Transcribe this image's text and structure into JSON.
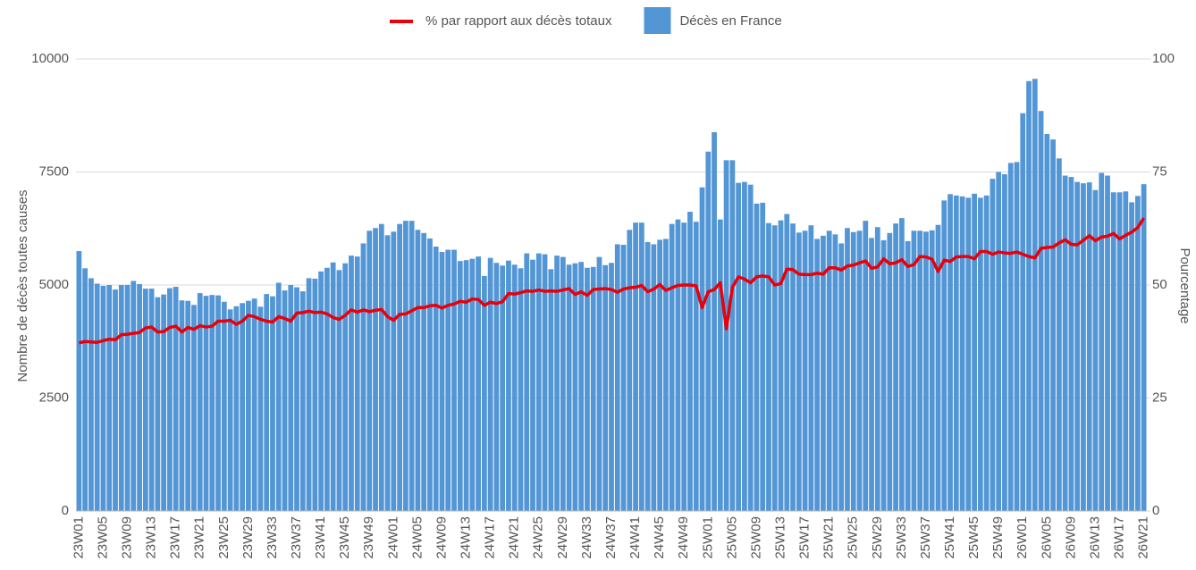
{
  "chart_data": {
    "type": "bar",
    "y_label": "Nombre de décès toutes causes",
    "y2_label": "Pourcentage",
    "ylim": [
      0,
      10000
    ],
    "yticks": [
      0,
      2500,
      5000,
      7500,
      10000
    ],
    "y2lim": [
      0,
      100
    ],
    "y2ticks": [
      0,
      25,
      50,
      75,
      100
    ],
    "grid": true,
    "legend": "top",
    "categories": [
      "23W01",
      null,
      null,
      null,
      "23W05",
      null,
      null,
      null,
      "23W09",
      null,
      null,
      null,
      "23W13",
      null,
      null,
      null,
      "23W17",
      null,
      null,
      null,
      "23W21",
      null,
      null,
      null,
      "23W25",
      null,
      null,
      null,
      "23W29",
      null,
      null,
      null,
      "23W33",
      null,
      null,
      null,
      "23W37",
      null,
      null,
      null,
      "23W41",
      null,
      null,
      null,
      "23W45",
      null,
      null,
      null,
      "23W49",
      null,
      null,
      null,
      "24W01",
      null,
      null,
      null,
      "24W05",
      null,
      null,
      null,
      "24W09",
      null,
      null,
      null,
      "24W13",
      null,
      null,
      null,
      "24W17",
      null,
      null,
      null,
      "24W21",
      null,
      null,
      null,
      "24W25",
      null,
      null,
      null,
      "24W29",
      null,
      null,
      null,
      "24W33",
      null,
      null,
      null,
      "24W37",
      null,
      null,
      null,
      "24W41",
      null,
      null,
      null,
      "24W45",
      null,
      null,
      null,
      "24W49",
      null,
      null,
      null,
      "25W01",
      null,
      null,
      null,
      "25W05",
      null,
      null,
      null,
      "25W09",
      null,
      null,
      null,
      "25W13",
      null,
      null,
      null,
      "25W17",
      null,
      null,
      null,
      "25W21",
      null,
      null,
      null,
      "25W25",
      null,
      null,
      null,
      "25W29",
      null,
      null,
      null,
      "25W33",
      null,
      null,
      null,
      "25W37",
      null,
      null,
      null,
      "25W41",
      null,
      null,
      null,
      "25W45",
      null,
      null,
      null,
      "25W49",
      null,
      null,
      null,
      "26W01",
      null,
      null,
      null,
      "26W05",
      null,
      null,
      null,
      "26W09",
      null,
      null,
      null,
      "26W13",
      null,
      null,
      null,
      "26W17",
      null,
      null,
      null,
      "26W21"
    ],
    "series": [
      {
        "name": "% par rapport aux décès totaux",
        "type": "line",
        "axis": "y2",
        "color": "#e8000b",
        "values": [
          37.2,
          37.5,
          37.4,
          37.3,
          37.7,
          38.0,
          37.9,
          39.0,
          39.1,
          39.3,
          39.5,
          40.5,
          40.7,
          39.6,
          39.7,
          40.6,
          40.9,
          39.6,
          40.6,
          40.2,
          41.0,
          40.7,
          40.9,
          42.0,
          42.0,
          42.2,
          41.3,
          42.0,
          43.3,
          43.0,
          42.4,
          42.0,
          41.8,
          43.0,
          42.6,
          42.0,
          43.8,
          43.9,
          44.2,
          43.9,
          44.0,
          43.6,
          42.8,
          42.4,
          43.3,
          44.5,
          44.0,
          44.5,
          44.1,
          44.4,
          44.6,
          43.0,
          42.2,
          43.5,
          43.6,
          44.3,
          45.0,
          45.0,
          45.4,
          45.5,
          44.9,
          45.5,
          45.8,
          46.4,
          46.2,
          46.9,
          46.8,
          45.5,
          46.2,
          45.9,
          46.3,
          48.1,
          48.0,
          48.3,
          48.7,
          48.6,
          48.9,
          48.6,
          48.7,
          48.6,
          48.9,
          49.2,
          47.9,
          48.5,
          47.7,
          49.0,
          49.1,
          49.2,
          49.0,
          48.4,
          49.1,
          49.4,
          49.5,
          49.9,
          48.5,
          49.1,
          50.1,
          48.8,
          49.4,
          49.9,
          50.0,
          50.0,
          49.8,
          45.0,
          48.5,
          49.0,
          50.5,
          40.3,
          49.5,
          51.8,
          51.3,
          50.5,
          51.8,
          52.0,
          51.8,
          50.0,
          50.3,
          53.5,
          53.4,
          52.4,
          52.3,
          52.3,
          52.6,
          52.4,
          53.8,
          53.8,
          53.3,
          54.2,
          54.4,
          54.9,
          55.3,
          53.7,
          54.0,
          55.8,
          54.7,
          54.9,
          55.6,
          54.1,
          54.5,
          56.3,
          56.2,
          55.7,
          53.0,
          55.5,
          55.2,
          56.2,
          56.3,
          56.3,
          55.8,
          57.4,
          57.4,
          56.8,
          57.3,
          57.1,
          57.0,
          57.3,
          56.8,
          56.3,
          56.0,
          58.1,
          58.3,
          58.4,
          59.3,
          60.0,
          59.0,
          58.9,
          59.9,
          60.9,
          59.8,
          60.6,
          60.8,
          61.4,
          60.2,
          61.0,
          61.7,
          62.7,
          64.8
        ]
      },
      {
        "name": "Décès en France",
        "type": "bar",
        "color": "#5396d6",
        "values": [
          5750,
          5370,
          5150,
          5030,
          4980,
          5000,
          4900,
          5000,
          5000,
          5090,
          5020,
          4920,
          4920,
          4730,
          4790,
          4930,
          4960,
          4660,
          4650,
          4560,
          4820,
          4760,
          4780,
          4770,
          4630,
          4460,
          4530,
          4600,
          4650,
          4700,
          4520,
          4800,
          4750,
          5050,
          4880,
          5000,
          4950,
          4860,
          5150,
          5140,
          5300,
          5380,
          5500,
          5330,
          5480,
          5650,
          5630,
          5920,
          6200,
          6260,
          6350,
          6100,
          6180,
          6350,
          6420,
          6420,
          6220,
          6150,
          6030,
          5850,
          5730,
          5780,
          5780,
          5530,
          5550,
          5580,
          5630,
          5200,
          5600,
          5490,
          5430,
          5540,
          5450,
          5370,
          5700,
          5560,
          5700,
          5680,
          5350,
          5650,
          5620,
          5450,
          5480,
          5510,
          5380,
          5400,
          5620,
          5440,
          5490,
          5900,
          5890,
          6220,
          6380,
          6380,
          5950,
          5900,
          6000,
          6020,
          6350,
          6450,
          6380,
          6620,
          6400,
          7160,
          7950,
          8380,
          6450,
          7760,
          7760,
          7260,
          7280,
          7220,
          6800,
          6820,
          6370,
          6320,
          6430,
          6570,
          6360,
          6160,
          6200,
          6320,
          6020,
          6090,
          6200,
          6120,
          5920,
          6260,
          6170,
          6200,
          6420,
          6040,
          6280,
          5990,
          6150,
          6360,
          6480,
          5970,
          6200,
          6200,
          6180,
          6210,
          6330,
          6870,
          7010,
          6980,
          6960,
          6930,
          7020,
          6930,
          6980,
          7350,
          7500,
          7450,
          7700,
          7720,
          8800,
          9510,
          9560,
          8850,
          8340,
          8220,
          7800,
          7420,
          7390,
          7280,
          7250,
          7270,
          7100,
          7480,
          7420,
          7050,
          7050,
          7070,
          6830,
          6970,
          7230
        ]
      }
    ]
  }
}
